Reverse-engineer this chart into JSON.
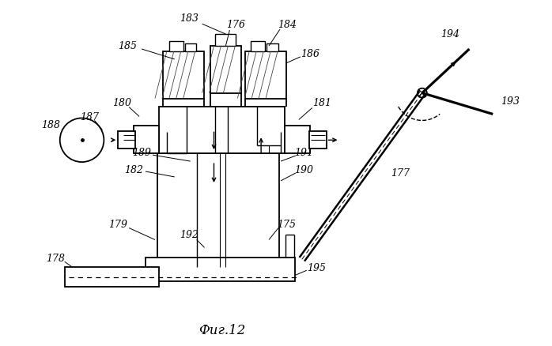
{
  "title": "Фиг.12",
  "background_color": "#ffffff",
  "line_color": "#000000",
  "figsize": [
    6.98,
    4.39
  ],
  "dpi": 100
}
